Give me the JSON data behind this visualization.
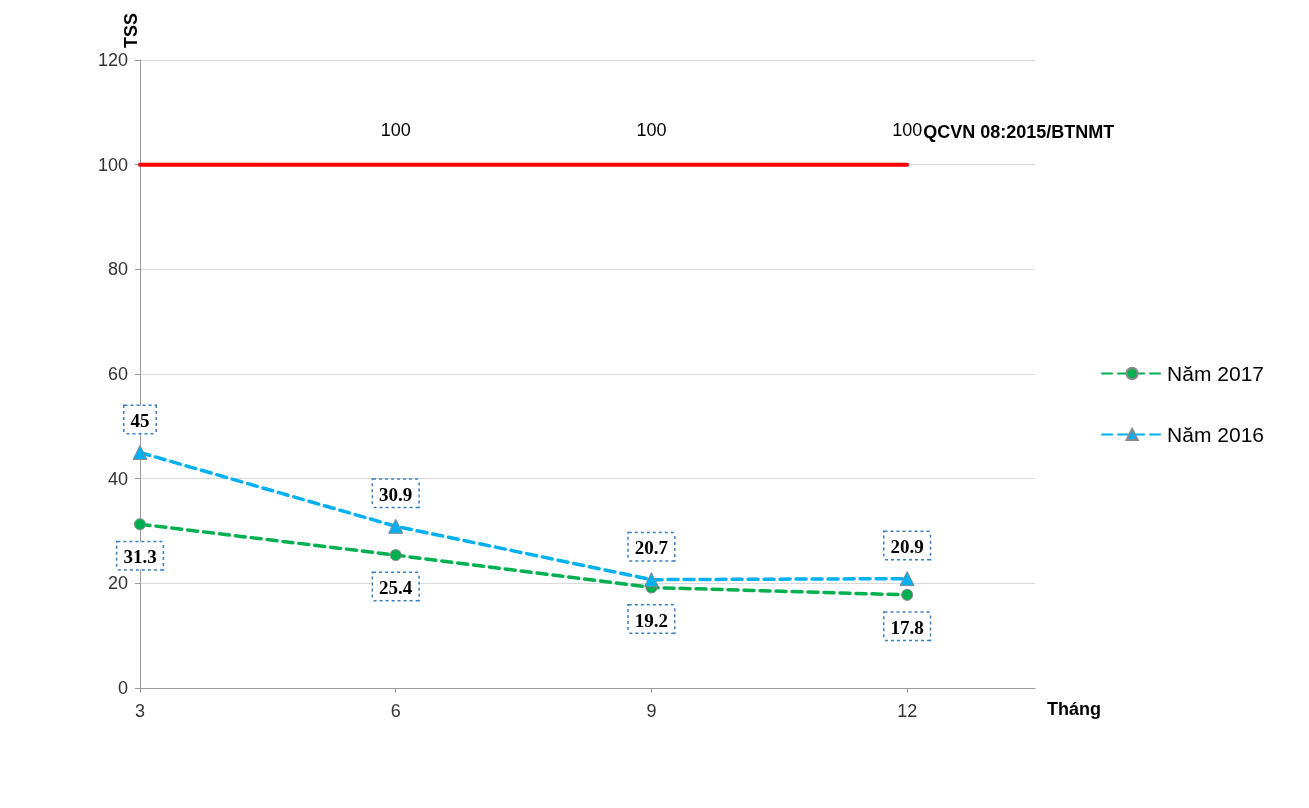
{
  "chart_data": {
    "type": "line",
    "xlabel": "Tháng",
    "ylabel": "TSS",
    "x": [
      3,
      6,
      9,
      12
    ],
    "xlim": [
      3,
      13.5
    ],
    "xticks": [
      3,
      6,
      9,
      12
    ],
    "ylim": [
      0,
      120
    ],
    "yticks": [
      0,
      20,
      40,
      60,
      80,
      100,
      120
    ],
    "grid": "y",
    "legend": "right",
    "series": [
      {
        "name": "QCVN 08:2015/BTNMT",
        "color": "#ff0000",
        "values": [
          100,
          100,
          100,
          100
        ],
        "value_labels": [
          null,
          "100",
          "100",
          "100"
        ],
        "line_style": "solid",
        "marker": "none"
      },
      {
        "name": "Năm 2017",
        "color": "#00b050",
        "values": [
          31.3,
          25.4,
          19.2,
          17.8
        ],
        "value_labels": [
          "31.3",
          "25.4",
          "19.2",
          "17.8"
        ],
        "line_style": "dashed",
        "marker": "circle"
      },
      {
        "name": "Năm 2016",
        "color": "#00b0f0",
        "values": [
          45,
          30.9,
          20.7,
          20.9
        ],
        "value_labels": [
          "45",
          "30.9",
          "20.7",
          "20.9"
        ],
        "line_style": "dashed",
        "marker": "triangle"
      }
    ]
  }
}
